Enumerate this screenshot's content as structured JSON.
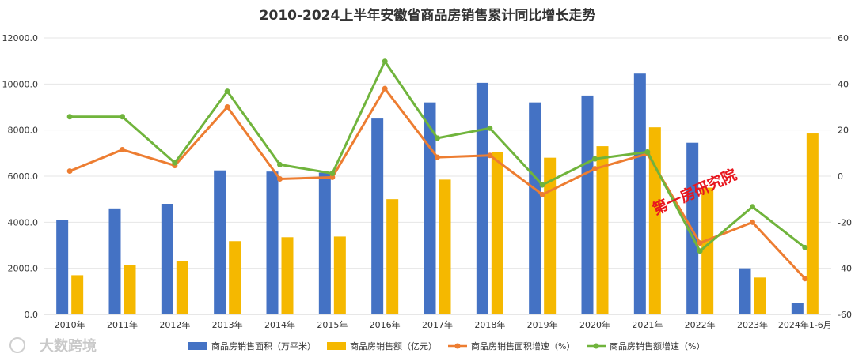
{
  "chart_data": {
    "type": "bar",
    "title": "2010-2024上半年安徽省商品房销售累计同比增长走势",
    "categories": [
      "2010年",
      "2011年",
      "2012年",
      "2013年",
      "2014年",
      "2015年",
      "2016年",
      "2017年",
      "2018年",
      "2019年",
      "2020年",
      "2021年",
      "2022年",
      "2023年",
      "2024年1-6月"
    ],
    "left_axis": {
      "min": 0,
      "max": 12000,
      "step": 2000,
      "tick_labels": [
        "0.0",
        "2000.0",
        "4000.0",
        "6000.0",
        "8000.0",
        "10000.0",
        "12000.0"
      ]
    },
    "right_axis": {
      "min": -60,
      "max": 60,
      "step": 20,
      "tick_labels": [
        "-60",
        "-40",
        "-20",
        "0",
        "20",
        "40",
        "60"
      ]
    },
    "series": [
      {
        "name": "商品房销售面积（万平米）",
        "kind": "bar",
        "axis": "left",
        "color": "#4472c4",
        "values": [
          4100,
          4600,
          4800,
          6250,
          6200,
          6150,
          8500,
          9200,
          10050,
          9200,
          9500,
          10450,
          7450,
          2000,
          500
        ]
      },
      {
        "name": "商品房销售额（亿元）",
        "kind": "bar",
        "axis": "left",
        "color": "#f5b800",
        "values": [
          1700,
          2150,
          2300,
          3180,
          3350,
          3380,
          5000,
          5850,
          7050,
          6800,
          7300,
          8120,
          5500,
          1600,
          7850
        ]
      },
      {
        "name": "商品房销售面积增速（%）",
        "kind": "line",
        "axis": "right",
        "color": "#ed7d31",
        "values": [
          2.2,
          11.5,
          4.6,
          30.0,
          -1.2,
          -0.5,
          38.0,
          8.2,
          9.0,
          -8.0,
          3.2,
          9.7,
          -29.0,
          -20.0,
          -44.5
        ]
      },
      {
        "name": "商品房销售额增速（%）",
        "kind": "line",
        "axis": "right",
        "color": "#70b43c",
        "values": [
          25.8,
          25.8,
          5.8,
          36.8,
          5.0,
          1.2,
          49.8,
          16.5,
          20.8,
          -3.8,
          7.5,
          10.5,
          -32.5,
          -13.3,
          -31.0
        ]
      }
    ],
    "grid": true,
    "legend_position": "bottom"
  },
  "stamp_text": "第一房研究院",
  "watermark_text": "大数跨境"
}
